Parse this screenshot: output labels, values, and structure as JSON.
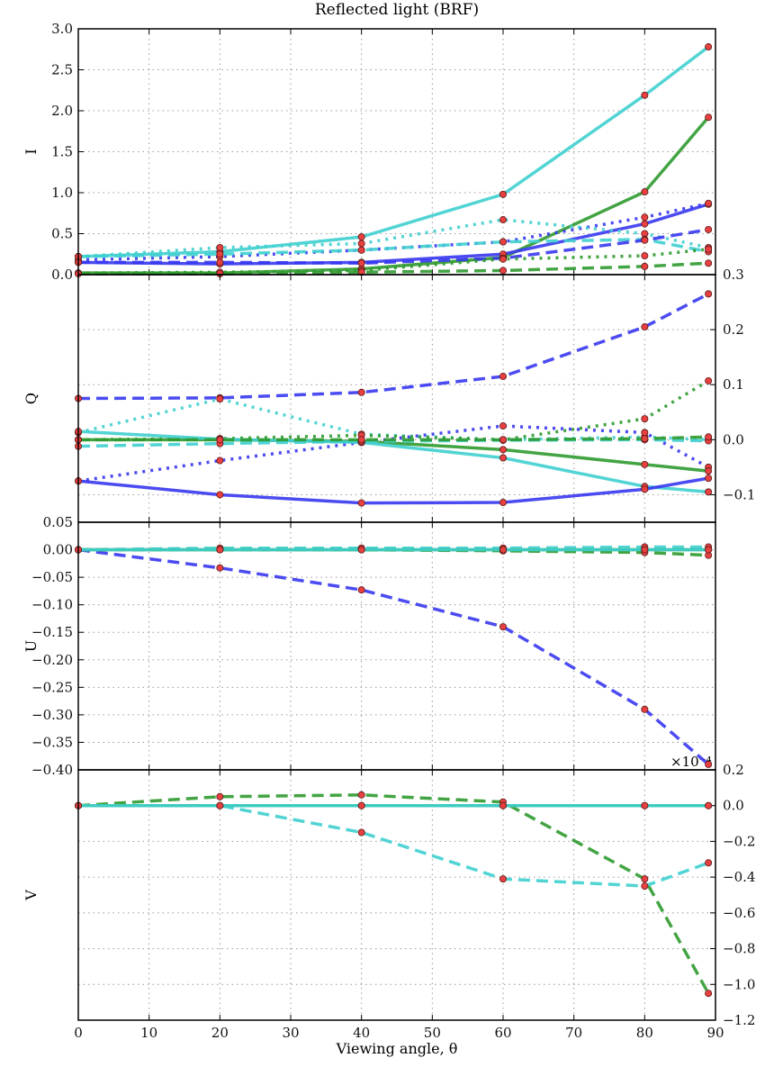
{
  "chart_data": [
    {
      "type": "line",
      "title": "Reflected light (BRF)",
      "ylabel": "I",
      "yaxis_side": "left",
      "ylim": [
        0,
        3.0
      ],
      "yticks": [
        "0.0",
        "0.5",
        "1.0",
        "1.5",
        "2.0",
        "2.5",
        "3.0"
      ],
      "x": [
        0,
        20,
        40,
        60,
        80,
        89
      ],
      "grid": true,
      "series": [
        {
          "color": "cyan",
          "style": "solid",
          "values": [
            0.22,
            0.28,
            0.46,
            0.98,
            2.19,
            2.78
          ]
        },
        {
          "color": "green",
          "style": "solid",
          "values": [
            0.02,
            0.02,
            0.07,
            0.21,
            1.01,
            1.92
          ]
        },
        {
          "color": "blue",
          "style": "solid",
          "values": [
            0.15,
            0.13,
            0.15,
            0.25,
            0.62,
            0.86
          ]
        },
        {
          "color": "blue",
          "style": "dotted",
          "values": [
            0.18,
            0.22,
            0.3,
            0.4,
            0.7,
            0.87
          ]
        },
        {
          "color": "cyan",
          "style": "dotted",
          "values": [
            0.22,
            0.33,
            0.38,
            0.67,
            0.5,
            0.33
          ]
        },
        {
          "color": "cyan",
          "style": "dashed",
          "values": [
            0.22,
            0.25,
            0.3,
            0.4,
            0.43,
            0.28
          ]
        },
        {
          "color": "blue",
          "style": "dashed",
          "values": [
            0.15,
            0.15,
            0.14,
            0.2,
            0.42,
            0.55
          ]
        },
        {
          "color": "green",
          "style": "dotted",
          "values": [
            0.02,
            0.03,
            0.05,
            0.19,
            0.23,
            0.31
          ]
        },
        {
          "color": "green",
          "style": "dashed",
          "values": [
            0.01,
            0.01,
            0.03,
            0.05,
            0.1,
            0.14
          ]
        }
      ]
    },
    {
      "type": "line",
      "ylabel": "Q",
      "yaxis_side": "right",
      "ylim": [
        -0.15,
        0.3
      ],
      "yticks": [
        "−0.1",
        "0.0",
        "0.1",
        "0.2",
        "0.3"
      ],
      "ytick_values": [
        -0.1,
        0,
        0.1,
        0.2,
        0.3
      ],
      "x": [
        0,
        20,
        40,
        60,
        80,
        89
      ],
      "grid": true,
      "series": [
        {
          "color": "blue",
          "style": "dashed",
          "values": [
            0.075,
            0.076,
            0.086,
            0.115,
            0.205,
            0.265
          ]
        },
        {
          "color": "cyan",
          "style": "dotted",
          "values": [
            0.013,
            0.074,
            0.01,
            0.0,
            0.005,
            0.0
          ]
        },
        {
          "color": "green",
          "style": "dotted",
          "values": [
            0.0,
            0.002,
            0.008,
            0.0,
            0.038,
            0.107
          ]
        },
        {
          "color": "blue",
          "style": "dotted",
          "values": [
            -0.075,
            -0.038,
            -0.005,
            0.025,
            0.013,
            -0.05
          ]
        },
        {
          "color": "green",
          "style": "solid",
          "values": [
            0.0,
            0.0,
            -0.003,
            -0.018,
            -0.045,
            -0.057
          ]
        },
        {
          "color": "cyan",
          "style": "solid",
          "values": [
            0.015,
            0.001,
            -0.005,
            -0.033,
            -0.085,
            -0.095
          ]
        },
        {
          "color": "blue",
          "style": "solid",
          "values": [
            -0.075,
            -0.1,
            -0.115,
            -0.114,
            -0.09,
            -0.07
          ]
        },
        {
          "color": "cyan",
          "style": "dashed",
          "values": [
            -0.012,
            -0.007,
            -0.003,
            -0.001,
            0.0,
            -0.002
          ]
        },
        {
          "color": "green",
          "style": "dashed",
          "values": [
            0.0,
            0.0,
            0.0,
            0.0,
            0.002,
            0.005
          ]
        }
      ]
    },
    {
      "type": "line",
      "ylabel": "U",
      "yaxis_side": "left",
      "ylim": [
        -0.4,
        0.05
      ],
      "yticks": [
        "−0.40",
        "−0.35",
        "−0.30",
        "−0.25",
        "−0.20",
        "−0.15",
        "−0.10",
        "−0.05",
        "0.00",
        "0.05"
      ],
      "ytick_values": [
        -0.4,
        -0.35,
        -0.3,
        -0.25,
        -0.2,
        -0.15,
        -0.1,
        -0.05,
        0,
        0.05
      ],
      "x": [
        0,
        20,
        40,
        60,
        80,
        89
      ],
      "grid": true,
      "series": [
        {
          "color": "blue",
          "style": "dashed",
          "values": [
            0,
            -0.033,
            -0.073,
            -0.14,
            -0.29,
            -0.39
          ]
        },
        {
          "color": "green",
          "style": "dashed",
          "values": [
            0,
            0,
            0,
            -0.002,
            -0.005,
            -0.01
          ]
        },
        {
          "color": "cyan",
          "style": "dashed",
          "values": [
            0,
            0.003,
            0.003,
            0.003,
            0.005,
            0.005
          ]
        },
        {
          "color": "green",
          "style": "solid",
          "values": [
            0,
            0,
            0,
            0,
            0,
            0
          ]
        },
        {
          "color": "cyan",
          "style": "solid",
          "values": [
            0,
            0,
            0,
            0,
            0,
            0
          ]
        }
      ]
    },
    {
      "type": "line",
      "ylabel": "V",
      "yaxis_side": "right",
      "offset_label": "×10⁻⁴",
      "ylim": [
        -1.2,
        0.2
      ],
      "yticks": [
        "−1.2",
        "−1.0",
        "−0.8",
        "−0.6",
        "−0.4",
        "−0.2",
        "0.0",
        "0.2"
      ],
      "ytick_values": [
        -1.2,
        -1.0,
        -0.8,
        -0.6,
        -0.4,
        -0.2,
        0,
        0.2
      ],
      "x": [
        0,
        20,
        40,
        60,
        80,
        89
      ],
      "xlabel": "Viewing angle, θ",
      "xlim": [
        0,
        90
      ],
      "xticks": [
        "0",
        "10",
        "20",
        "30",
        "40",
        "50",
        "60",
        "70",
        "80",
        "90"
      ],
      "grid": true,
      "series": [
        {
          "color": "green",
          "style": "dashed",
          "values": [
            0,
            0.05,
            0.06,
            0.02,
            -0.41,
            -1.05
          ]
        },
        {
          "color": "cyan",
          "style": "dashed",
          "values": [
            0,
            0.0,
            -0.15,
            -0.41,
            -0.45,
            -0.32
          ]
        },
        {
          "color": "green",
          "style": "solid",
          "values": [
            0,
            0,
            0,
            0,
            0,
            0
          ]
        },
        {
          "color": "cyan",
          "style": "solid",
          "values": [
            0,
            0,
            0,
            0,
            0,
            0
          ]
        }
      ]
    }
  ],
  "colors": {
    "cyan": "#3fcfcf",
    "green": "#2f9a2f",
    "blue": "#3737f0",
    "marker": "#e84040"
  }
}
